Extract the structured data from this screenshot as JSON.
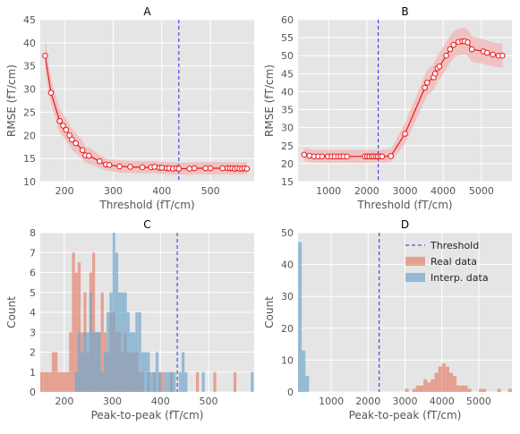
{
  "chart_data": [
    {
      "panel": "A",
      "type": "line",
      "title": "A",
      "xlabel": "Threshold (fT/cm)",
      "ylabel": "RMSE (fT/cm)",
      "xlim": [
        150,
        590
      ],
      "ylim": [
        10,
        45
      ],
      "xticks": [
        200,
        300,
        400,
        500
      ],
      "yticks": [
        10,
        15,
        20,
        25,
        30,
        35,
        40,
        45
      ],
      "threshold": 435,
      "series": [
        {
          "x": [
            160,
            172,
            190,
            197,
            203,
            210,
            215,
            223,
            237,
            243,
            250,
            272,
            285,
            292,
            313,
            335,
            360,
            378,
            385,
            395,
            400,
            410,
            415,
            423,
            430,
            435,
            457,
            467,
            490,
            500,
            525,
            535,
            540,
            545,
            550,
            555,
            560,
            565,
            570,
            575
          ],
          "y": [
            37.2,
            29.2,
            23.1,
            22.1,
            21.2,
            20.0,
            19.1,
            18.3,
            16.8,
            15.7,
            15.6,
            14.4,
            13.7,
            13.6,
            13.3,
            13.2,
            13.1,
            13.1,
            13.2,
            13.0,
            13.0,
            12.9,
            12.9,
            12.8,
            12.9,
            12.8,
            12.8,
            12.9,
            12.9,
            12.9,
            12.9,
            12.9,
            12.9,
            12.9,
            12.8,
            12.9,
            12.8,
            12.8,
            12.9,
            12.8
          ],
          "lo": [
            33.6,
            26.7,
            20.6,
            19.7,
            18.8,
            17.8,
            16.9,
            16.2,
            14.9,
            14.0,
            13.9,
            13.0,
            12.4,
            12.3,
            12.0,
            11.9,
            11.8,
            11.8,
            11.9,
            11.7,
            11.7,
            11.6,
            11.6,
            11.5,
            11.6,
            11.5,
            11.5,
            11.6,
            11.6,
            11.6,
            11.6,
            11.6,
            11.6,
            11.6,
            11.5,
            11.6,
            11.5,
            11.5,
            11.6,
            11.5
          ],
          "hi": [
            41.2,
            32.2,
            25.8,
            24.6,
            23.7,
            22.4,
            21.4,
            20.5,
            18.8,
            17.5,
            17.4,
            15.8,
            15.0,
            14.9,
            14.6,
            14.5,
            14.4,
            14.4,
            14.5,
            14.3,
            14.3,
            14.2,
            14.2,
            14.1,
            14.2,
            14.1,
            14.1,
            14.2,
            14.2,
            14.2,
            14.2,
            14.2,
            14.2,
            14.2,
            14.1,
            14.2,
            14.1,
            14.1,
            14.2,
            14.1
          ]
        }
      ]
    },
    {
      "panel": "B",
      "type": "line",
      "title": "B",
      "xlabel": "Threshold (fT/cm)",
      "ylabel": "RMSE (fT/cm)",
      "xlim": [
        200,
        5800
      ],
      "ylim": [
        15,
        60
      ],
      "xticks": [
        1000,
        2000,
        3000,
        4000,
        5000
      ],
      "yticks": [
        15,
        20,
        25,
        30,
        35,
        40,
        45,
        50,
        55,
        60
      ],
      "threshold": 2300,
      "series": [
        {
          "x": [
            360,
            500,
            620,
            730,
            830,
            980,
            1080,
            1160,
            1250,
            1320,
            1390,
            1480,
            1950,
            2010,
            2070,
            2130,
            2180,
            2240,
            2290,
            2350,
            2400,
            2630,
            3000,
            3520,
            3580,
            3750,
            3790,
            3850,
            3900,
            4080,
            4180,
            4270,
            4400,
            4500,
            4560,
            4640,
            4750,
            5050,
            5150,
            5300,
            5450,
            5550
          ],
          "y": [
            22.5,
            22.2,
            22.0,
            22.0,
            22.0,
            22.0,
            22.0,
            22.0,
            22.0,
            22.0,
            22.0,
            22.0,
            22.0,
            22.0,
            22.0,
            22.0,
            22.0,
            22.0,
            22.0,
            22.0,
            22.0,
            22.1,
            28.3,
            41.1,
            42.5,
            44.0,
            45.0,
            46.5,
            47.0,
            50.0,
            51.8,
            53.0,
            53.8,
            54.0,
            54.0,
            53.7,
            51.8,
            51.2,
            50.8,
            50.3,
            50.0,
            50.0
          ],
          "lo": [
            20.8,
            20.5,
            20.3,
            20.3,
            20.3,
            20.3,
            20.3,
            20.3,
            20.3,
            20.3,
            20.3,
            20.3,
            20.3,
            20.3,
            20.3,
            20.3,
            20.3,
            20.3,
            20.3,
            20.3,
            20.3,
            20.4,
            25.5,
            37.5,
            39.0,
            40.5,
            41.4,
            42.7,
            43.3,
            46.2,
            48.0,
            49.3,
            50.1,
            50.3,
            50.3,
            50.0,
            48.3,
            47.8,
            47.4,
            47.0,
            46.8,
            46.8
          ],
          "hi": [
            24.4,
            24.1,
            23.9,
            23.9,
            23.9,
            23.9,
            23.9,
            23.9,
            23.9,
            23.9,
            23.9,
            23.9,
            23.9,
            23.9,
            23.9,
            23.9,
            23.9,
            23.9,
            23.9,
            23.9,
            23.9,
            24.0,
            31.3,
            44.6,
            46.0,
            47.5,
            48.5,
            50.0,
            50.7,
            53.7,
            55.5,
            56.8,
            57.5,
            57.7,
            57.7,
            57.3,
            55.4,
            54.6,
            54.2,
            53.7,
            53.4,
            53.4
          ]
        }
      ]
    },
    {
      "panel": "C",
      "type": "histogram",
      "title": "C",
      "xlabel": "Peak-to-peak (fT/cm)",
      "ylabel": "Count",
      "xlim": [
        150,
        595
      ],
      "ylim": [
        0,
        8
      ],
      "xticks": [
        200,
        300,
        400,
        500
      ],
      "yticks": [
        0,
        1,
        2,
        3,
        4,
        5,
        6,
        7,
        8
      ],
      "threshold": 435,
      "bin_width": 6.0,
      "series": [
        {
          "name": "Real data",
          "bins": [
            [
              150,
              1
            ],
            [
              156,
              1
            ],
            [
              162,
              1
            ],
            [
              168,
              1
            ],
            [
              174,
              2
            ],
            [
              180,
              2
            ],
            [
              186,
              1
            ],
            [
              192,
              1
            ],
            [
              198,
              1
            ],
            [
              204,
              1
            ],
            [
              210,
              3
            ],
            [
              216,
              7
            ],
            [
              222,
              6
            ],
            [
              228,
              6.5
            ],
            [
              234,
              3
            ],
            [
              240,
              5
            ],
            [
              246,
              2
            ],
            [
              252,
              6
            ],
            [
              258,
              7
            ],
            [
              264,
              3
            ],
            [
              270,
              3
            ],
            [
              276,
              5
            ],
            [
              282,
              3
            ],
            [
              288,
              2
            ],
            [
              294,
              4
            ],
            [
              300,
              4
            ],
            [
              306,
              3
            ],
            [
              312,
              3
            ],
            [
              318,
              2
            ],
            [
              324,
              3
            ],
            [
              330,
              2
            ],
            [
              336,
              2
            ],
            [
              342,
              2
            ],
            [
              348,
              2
            ],
            [
              354,
              1
            ],
            [
              360,
              1
            ],
            [
              372,
              1
            ],
            [
              384,
              1
            ],
            [
              396,
              1
            ],
            [
              402,
              1
            ],
            [
              420,
              1
            ],
            [
              474,
              1
            ],
            [
              510,
              1
            ],
            [
              552,
              1
            ]
          ]
        },
        {
          "name": "Interp. data",
          "bins": [
            [
              222,
              1
            ],
            [
              228,
              3
            ],
            [
              234,
              2
            ],
            [
              240,
              3
            ],
            [
              246,
              3
            ],
            [
              252,
              5
            ],
            [
              258,
              3
            ],
            [
              264,
              3
            ],
            [
              270,
              3
            ],
            [
              276,
              1
            ],
            [
              282,
              2
            ],
            [
              288,
              4
            ],
            [
              294,
              5
            ],
            [
              300,
              8
            ],
            [
              306,
              7
            ],
            [
              312,
              5
            ],
            [
              318,
              5
            ],
            [
              324,
              5
            ],
            [
              330,
              4
            ],
            [
              336,
              3
            ],
            [
              342,
              3
            ],
            [
              348,
              4
            ],
            [
              354,
              4
            ],
            [
              360,
              2
            ],
            [
              366,
              2
            ],
            [
              372,
              2
            ],
            [
              378,
              1
            ],
            [
              384,
              1
            ],
            [
              390,
              2
            ],
            [
              396,
              1
            ],
            [
              408,
              1
            ],
            [
              414,
              1
            ],
            [
              420,
              1
            ],
            [
              426,
              1
            ],
            [
              438,
              1
            ],
            [
              444,
              2
            ],
            [
              450,
              1
            ],
            [
              486,
              1
            ],
            [
              588,
              1
            ]
          ]
        }
      ]
    },
    {
      "panel": "D",
      "type": "histogram",
      "title": "D",
      "xlabel": "Peak-to-peak (fT/cm)",
      "ylabel": "Count",
      "xlim": [
        100,
        5900
      ],
      "ylim": [
        0,
        50
      ],
      "xticks": [
        1000,
        2000,
        3000,
        4000,
        5000
      ],
      "yticks": [
        0,
        10,
        20,
        30,
        40,
        50
      ],
      "threshold": 2300,
      "bin_width": 100,
      "legend": [
        "Threshold",
        "Real data",
        "Interp. data"
      ],
      "series": [
        {
          "name": "Real data",
          "bins": [
            [
              3000,
              1
            ],
            [
              3200,
              1
            ],
            [
              3300,
              2
            ],
            [
              3400,
              2
            ],
            [
              3500,
              4
            ],
            [
              3600,
              3
            ],
            [
              3700,
              4
            ],
            [
              3800,
              6
            ],
            [
              3900,
              8
            ],
            [
              4000,
              9
            ],
            [
              4100,
              8
            ],
            [
              4200,
              6
            ],
            [
              4300,
              5
            ],
            [
              4400,
              2
            ],
            [
              4500,
              2
            ],
            [
              4600,
              2
            ],
            [
              4700,
              1
            ],
            [
              5000,
              1
            ],
            [
              5100,
              1
            ],
            [
              5500,
              1
            ],
            [
              5800,
              1
            ]
          ]
        },
        {
          "name": "Interp. data",
          "bins": [
            [
              100,
              47
            ],
            [
              200,
              13
            ],
            [
              300,
              5
            ]
          ]
        }
      ]
    }
  ]
}
